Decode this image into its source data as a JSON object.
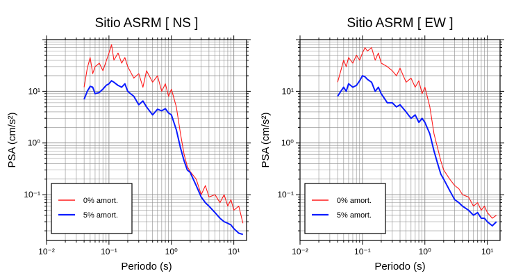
{
  "colors": {
    "series_0pct": "#ff1a1a",
    "series_5pct": "#0a1bff",
    "grid": "#8c8c8c",
    "frame": "#000000"
  },
  "chart_data": [
    {
      "type": "line",
      "title": "Sitio ASRM [ NS ]",
      "xlabel": "Periodo (s)",
      "ylabel": "PSA (cm/s²)",
      "xscale": "log",
      "yscale": "log",
      "xlim": [
        0.01,
        16
      ],
      "ylim": [
        0.013,
        100
      ],
      "grid": true,
      "legend_position": "bottom-left",
      "x_tick_labels": [
        "10⁻²",
        "10⁻¹",
        "10⁰",
        "10¹"
      ],
      "y_tick_labels": [
        "10⁻¹",
        "10⁰",
        "10¹"
      ],
      "series": [
        {
          "name": "0% amort.",
          "color": "#ff1a1a",
          "x": [
            0.04,
            0.045,
            0.05,
            0.055,
            0.06,
            0.07,
            0.08,
            0.09,
            0.1,
            0.11,
            0.12,
            0.14,
            0.16,
            0.18,
            0.2,
            0.25,
            0.3,
            0.35,
            0.4,
            0.5,
            0.6,
            0.7,
            0.8,
            0.9,
            1.0,
            1.2,
            1.4,
            1.6,
            1.8,
            2.0,
            2.5,
            3.0,
            3.5,
            4.0,
            5.0,
            6.0,
            7.0,
            8.0,
            9.0,
            10.0,
            12.0,
            14.0
          ],
          "values": [
            12,
            28,
            45,
            22,
            30,
            35,
            25,
            38,
            55,
            80,
            40,
            55,
            35,
            45,
            30,
            18,
            22,
            12,
            25,
            15,
            20,
            10,
            14,
            8,
            11,
            5,
            1.5,
            0.6,
            0.35,
            0.28,
            0.2,
            0.1,
            0.15,
            0.09,
            0.1,
            0.07,
            0.1,
            0.06,
            0.08,
            0.05,
            0.06,
            0.028
          ]
        },
        {
          "name": "5% amort.",
          "color": "#0a1bff",
          "x": [
            0.04,
            0.045,
            0.05,
            0.055,
            0.06,
            0.07,
            0.08,
            0.09,
            0.1,
            0.11,
            0.12,
            0.14,
            0.16,
            0.18,
            0.2,
            0.25,
            0.3,
            0.35,
            0.4,
            0.5,
            0.6,
            0.7,
            0.8,
            0.9,
            1.0,
            1.2,
            1.4,
            1.6,
            1.8,
            2.0,
            2.5,
            3.0,
            3.5,
            4.0,
            5.0,
            6.0,
            7.0,
            8.0,
            9.0,
            10.0,
            12.0,
            14.0
          ],
          "values": [
            7,
            10,
            12.5,
            12,
            9,
            9.5,
            11,
            13,
            14,
            16,
            15,
            13,
            12,
            14,
            10,
            8,
            5.5,
            6.5,
            5,
            3.5,
            4.5,
            4.2,
            4.6,
            3.8,
            3.5,
            1.8,
            0.8,
            0.45,
            0.3,
            0.27,
            0.15,
            0.09,
            0.07,
            0.06,
            0.045,
            0.035,
            0.03,
            0.028,
            0.026,
            0.022,
            0.018,
            0.017
          ]
        }
      ]
    },
    {
      "type": "line",
      "title": "Sitio ASRM [ EW ]",
      "xlabel": "Periodo (s)",
      "ylabel": "PSA (cm/s²)",
      "xscale": "log",
      "yscale": "log",
      "xlim": [
        0.01,
        16
      ],
      "ylim": [
        0.013,
        100
      ],
      "grid": true,
      "legend_position": "bottom-left",
      "x_tick_labels": [
        "10⁻²",
        "10⁻¹",
        "10⁰",
        "10¹"
      ],
      "y_tick_labels": [
        "10⁻¹",
        "10⁰",
        "10¹"
      ],
      "series": [
        {
          "name": "0% amort.",
          "color": "#ff1a1a",
          "x": [
            0.04,
            0.045,
            0.05,
            0.055,
            0.06,
            0.07,
            0.08,
            0.09,
            0.1,
            0.11,
            0.12,
            0.14,
            0.16,
            0.18,
            0.2,
            0.25,
            0.3,
            0.35,
            0.4,
            0.5,
            0.6,
            0.7,
            0.8,
            0.9,
            1.0,
            1.2,
            1.4,
            1.6,
            1.8,
            2.0,
            2.5,
            3.0,
            3.5,
            4.0,
            5.0,
            6.0,
            7.0,
            8.0,
            9.0,
            10.0,
            12.0,
            14.0
          ],
          "values": [
            15,
            25,
            40,
            30,
            45,
            35,
            50,
            40,
            55,
            70,
            60,
            70,
            40,
            55,
            35,
            30,
            25,
            20,
            28,
            15,
            18,
            12,
            16,
            9,
            12,
            5,
            1.5,
            0.8,
            0.45,
            0.3,
            0.2,
            0.15,
            0.13,
            0.1,
            0.09,
            0.06,
            0.07,
            0.05,
            0.06,
            0.045,
            0.035,
            0.04
          ]
        },
        {
          "name": "5% amort.",
          "color": "#0a1bff",
          "x": [
            0.04,
            0.045,
            0.05,
            0.055,
            0.06,
            0.07,
            0.08,
            0.09,
            0.1,
            0.11,
            0.12,
            0.14,
            0.16,
            0.18,
            0.2,
            0.25,
            0.3,
            0.35,
            0.4,
            0.5,
            0.6,
            0.7,
            0.8,
            0.9,
            1.0,
            1.2,
            1.4,
            1.6,
            1.8,
            2.0,
            2.5,
            3.0,
            3.5,
            4.0,
            5.0,
            6.0,
            7.0,
            8.0,
            9.0,
            10.0,
            12.0,
            14.0
          ],
          "values": [
            8,
            10,
            12,
            10,
            14,
            12,
            13,
            16,
            20,
            19,
            17,
            15,
            10,
            12,
            9,
            6,
            6,
            5,
            5.5,
            4,
            3,
            3.5,
            2.5,
            3,
            2.5,
            1.5,
            0.7,
            0.4,
            0.25,
            0.2,
            0.12,
            0.08,
            0.07,
            0.06,
            0.05,
            0.04,
            0.045,
            0.035,
            0.035,
            0.03,
            0.025,
            0.03
          ]
        }
      ]
    }
  ]
}
